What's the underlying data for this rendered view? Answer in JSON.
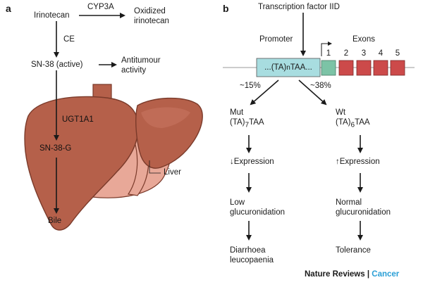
{
  "panel_a": {
    "label": "a",
    "irinotecan": "Irinotecan",
    "cyp3a": "CYP3A",
    "oxidized_line1": "Oxidized",
    "oxidized_line2": "irinotecan",
    "ce": "CE",
    "sn38": "SN-38 (active)",
    "antitumour_line1": "Antitumour",
    "antitumour_line2": "activity",
    "ugt1a1": "UGT1A1",
    "sn38g": "SN-38-G",
    "liver": "Liver",
    "bile": "Bile"
  },
  "panel_b": {
    "label": "b",
    "tf": "Transcription factor IID",
    "promoter": "Promoter",
    "exons": "Exons",
    "promoter_seq_pre": "...(TA)",
    "promoter_seq_sub": "n",
    "promoter_seq_post": "TAA...",
    "exon_numbers": [
      "1",
      "2",
      "3",
      "4",
      "5"
    ],
    "pct_left": "~15%",
    "pct_right": "~38%",
    "mut_label": "Mut",
    "mut_seq_pre": "(TA)",
    "mut_seq_sub": "7",
    "mut_seq_post": "TAA",
    "wt_label": "Wt",
    "wt_seq_pre": "(TA)",
    "wt_seq_sub": "6",
    "wt_seq_post": "TAA",
    "expr_down": "↓Expression",
    "expr_up": "↑Expression",
    "low_line1": "Low",
    "low_line2": "glucuronidation",
    "normal_line1": "Normal",
    "normal_line2": "glucuronidation",
    "outcome_left_line1": "Diarrhoea",
    "outcome_left_line2": "leucopaenia",
    "outcome_right": "Tolerance"
  },
  "credit": {
    "journal": "Nature Reviews",
    "separator": " | ",
    "section": "Cancer"
  },
  "colors": {
    "liver": "#b5604a",
    "liver_dark": "#7a3a2a",
    "liver_pink": "#e8a898",
    "promoter_box": "#a8dde0",
    "exon_green": "#7cc3a6",
    "exon_red": "#cc4a4a",
    "accent": "#2a9fd6"
  }
}
